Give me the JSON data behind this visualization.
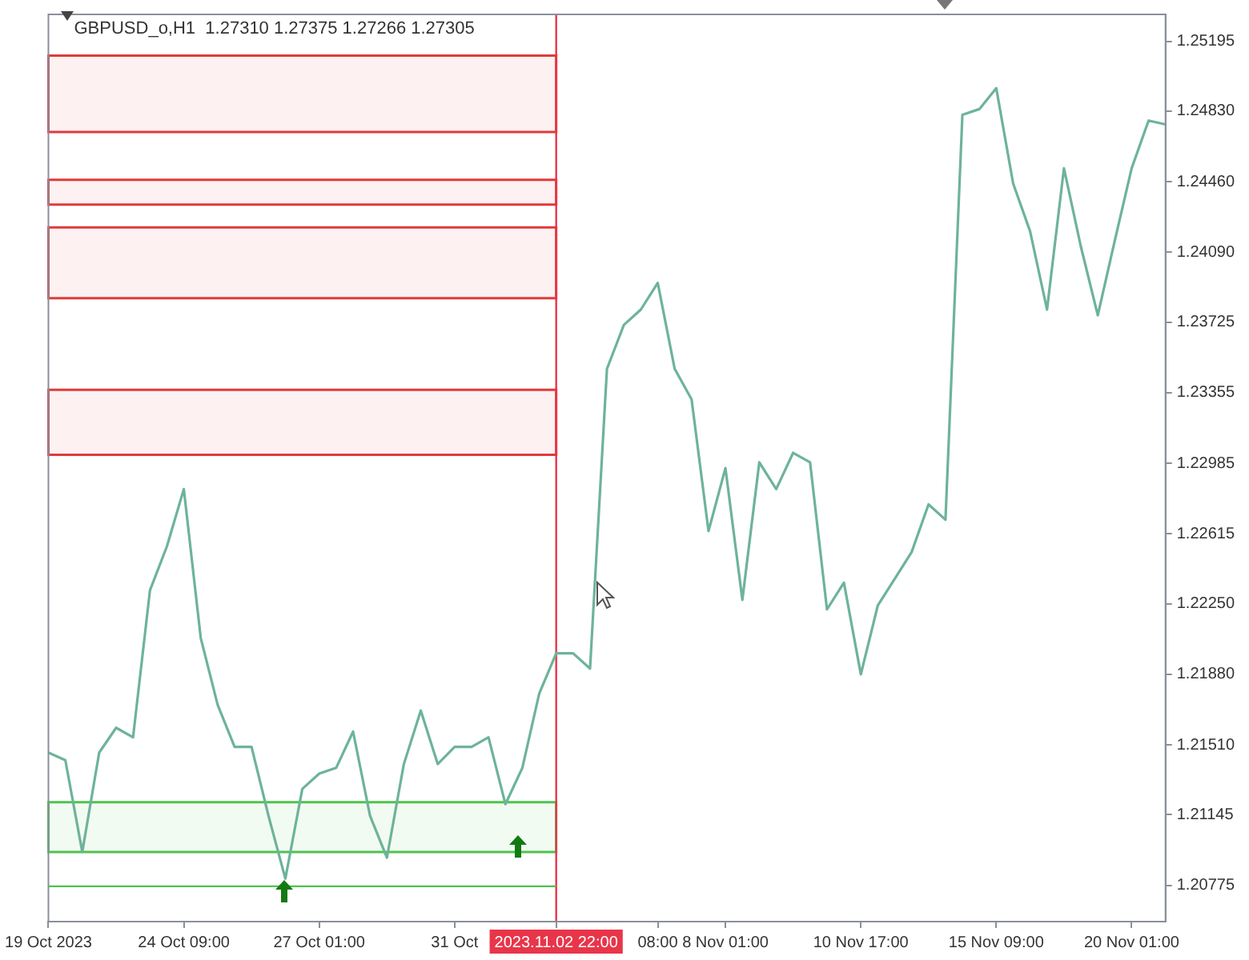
{
  "chart_data": {
    "type": "line",
    "title": "GBPUSD_o,H1  1.27310 1.27375 1.27266 1.27305",
    "categories": [
      "19 Oct 2023",
      null,
      null,
      null,
      null,
      null,
      null,
      null,
      "24 Oct 09:00",
      null,
      null,
      null,
      null,
      null,
      null,
      null,
      "27 Oct 01:00",
      null,
      null,
      null,
      null,
      null,
      null,
      null,
      "31 Oct",
      null,
      null,
      null,
      null,
      null,
      "2023.11.02 22:00",
      null,
      null,
      null,
      null,
      null,
      "08:00",
      null,
      null,
      null,
      "8 Nov 01:00",
      null,
      null,
      null,
      null,
      null,
      null,
      null,
      "10 Nov 17:00",
      null,
      null,
      null,
      null,
      null,
      null,
      null,
      "15 Nov 09:00",
      null,
      null,
      null,
      null,
      null,
      null,
      null,
      "20 Nov 01:00",
      null,
      null
    ],
    "series": [
      {
        "color": "#6db39a",
        "values": [
          1.2147,
          1.2143,
          1.2095,
          1.2147,
          1.216,
          1.2155,
          1.2232,
          1.2255,
          1.2285,
          1.2207,
          1.2172,
          1.215,
          1.215,
          1.2114,
          1.2081,
          1.2128,
          1.2136,
          1.2139,
          1.2158,
          1.2114,
          1.2092,
          1.2141,
          1.2169,
          1.2141,
          1.215,
          1.215,
          1.2155,
          1.212,
          1.2139,
          1.2178,
          1.2199,
          1.2199,
          1.2191,
          1.2348,
          1.2371,
          1.2379,
          1.2393,
          1.2348,
          1.2332,
          1.2263,
          1.2296,
          1.2227,
          1.2299,
          1.2285,
          1.2304,
          1.2299,
          1.2222,
          1.2236,
          1.2188,
          1.2224,
          1.2238,
          1.2252,
          1.2277,
          1.2269,
          1.2481,
          1.2484,
          1.2495,
          1.2445,
          1.242,
          1.2379,
          1.2453,
          1.2412,
          1.2376,
          1.2415,
          1.2453,
          1.2478,
          1.2476
        ]
      }
    ],
    "ylim": [
      1.20585,
      1.25336
    ],
    "yticks": [
      {
        "value": 1.25195,
        "label": "1.25195"
      },
      {
        "value": 1.2483,
        "label": "1.24830"
      },
      {
        "value": 1.2446,
        "label": "1.24460"
      },
      {
        "value": 1.2409,
        "label": "1.24090"
      },
      {
        "value": 1.23725,
        "label": "1.23725"
      },
      {
        "value": 1.23355,
        "label": "1.23355"
      },
      {
        "value": 1.22985,
        "label": "1.22985"
      },
      {
        "value": 1.22615,
        "label": "1.22615"
      },
      {
        "value": 1.2225,
        "label": "1.22250"
      },
      {
        "value": 1.2188,
        "label": "1.21880"
      },
      {
        "value": 1.2151,
        "label": "1.21510"
      },
      {
        "value": 1.21145,
        "label": "1.21145"
      },
      {
        "value": 1.20775,
        "label": "1.20775"
      }
    ],
    "ref_lines": [
      {
        "axis": "x",
        "value": "2023.11.02 22:00",
        "color": "#e8354a"
      },
      {
        "axis": "y",
        "value": 1.2077,
        "color": "#4cc44c"
      }
    ],
    "bands": [
      {
        "axis": "y",
        "from": 1.2472,
        "to": 1.2512,
        "color": "#e03a3a"
      },
      {
        "axis": "y",
        "from": 1.2434,
        "to": 1.2447,
        "color": "#e03a3a"
      },
      {
        "axis": "y",
        "from": 1.2385,
        "to": 1.2422,
        "color": "#e03a3a"
      },
      {
        "axis": "y",
        "from": 1.2303,
        "to": 1.2337,
        "color": "#e03a3a"
      },
      {
        "axis": "y",
        "from": 1.2095,
        "to": 1.2121,
        "color": "#4cc44c"
      }
    ],
    "grid": false,
    "legend": false,
    "marker": "none",
    "line_style": "solid"
  }
}
